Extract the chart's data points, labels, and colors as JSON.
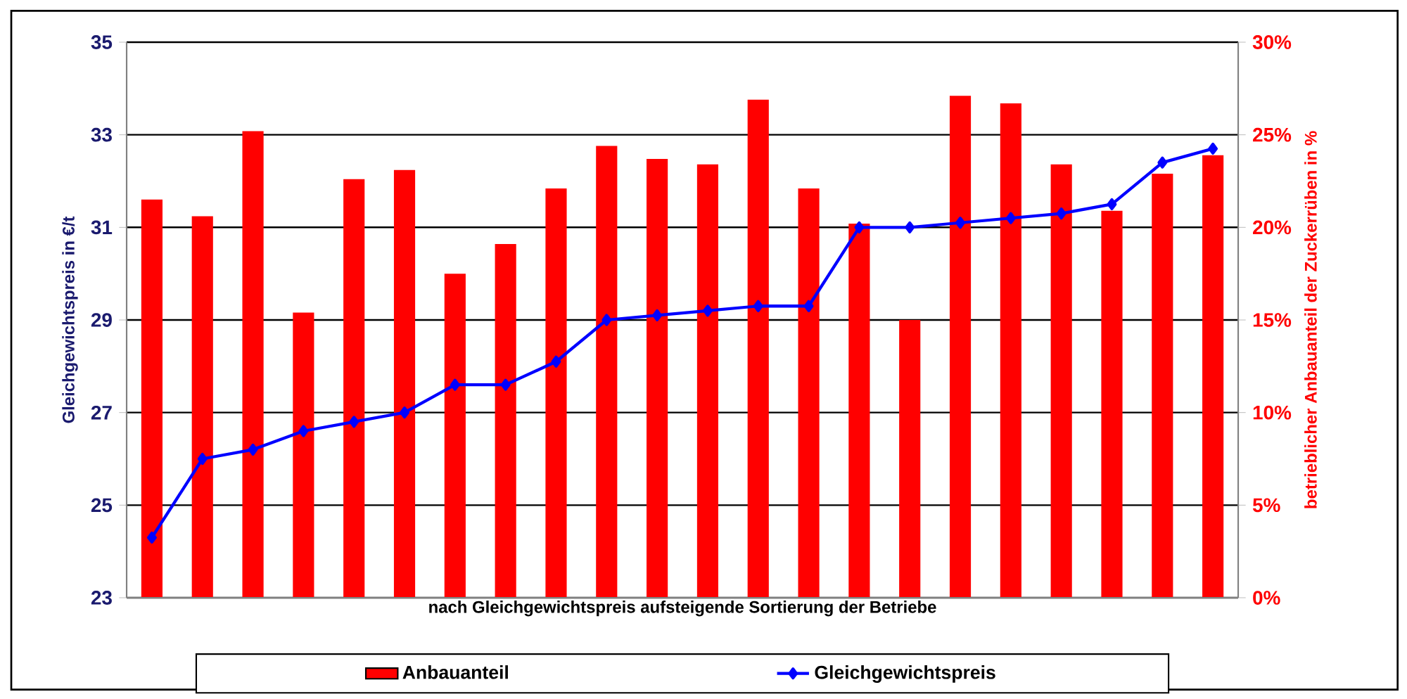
{
  "chart_data": {
    "type": "bar",
    "xlabel": "nach Gleichgewichtspreis aufsteigende Sortierung der Betriebe",
    "ylabel": "Gleichgewichtspreis in €/t",
    "y2label": "betrieblicher Anbauanteil der Zuckerrüben in %",
    "categories": [
      null,
      null,
      null,
      null,
      null,
      null,
      null,
      null,
      null,
      null,
      null,
      null,
      null,
      null,
      null,
      null,
      null,
      null,
      null,
      null,
      null,
      null
    ],
    "series": [
      {
        "name": "Anbauanteil",
        "axis": "y2",
        "color": "#ff0000",
        "values": [
          21.5,
          20.6,
          25.2,
          15.4,
          22.6,
          23.1,
          17.5,
          19.1,
          22.1,
          24.4,
          23.7,
          23.4,
          26.9,
          22.1,
          20.2,
          15.0,
          27.1,
          26.7,
          23.4,
          20.9,
          22.9,
          23.9
        ]
      },
      {
        "name": "Gleichgewichtspreis",
        "type": "line",
        "color": "#0000ff",
        "values": [
          24.3,
          26.0,
          26.2,
          26.6,
          26.8,
          27.0,
          27.6,
          27.6,
          28.1,
          29.0,
          29.1,
          29.2,
          29.3,
          29.3,
          31.0,
          31.0,
          31.1,
          31.2,
          31.3,
          31.5,
          32.4,
          32.7
        ]
      }
    ],
    "ylim": [
      23,
      35
    ],
    "yticks": [
      23,
      25,
      27,
      29,
      31,
      33,
      35
    ],
    "y2lim": [
      0,
      30
    ],
    "y2ticks": [
      {
        "value": 0,
        "label": "0%"
      },
      {
        "value": 5,
        "label": "5%"
      },
      {
        "value": 10,
        "label": "10%"
      },
      {
        "value": 15,
        "label": "15%"
      },
      {
        "value": 20,
        "label": "20%"
      },
      {
        "value": 25,
        "label": "25%"
      },
      {
        "value": 30,
        "label": "30%"
      }
    ],
    "grid": "y",
    "legend": "bottom",
    "marker": "diamond",
    "line_style": "solid"
  }
}
